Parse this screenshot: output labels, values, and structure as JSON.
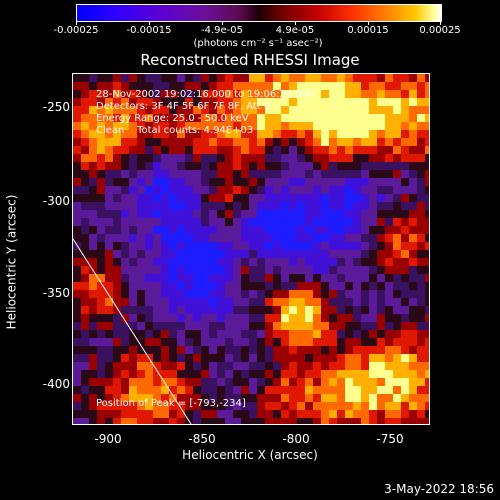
{
  "colorbar": {
    "ticks": [
      "-0.00025",
      "-0.00015",
      "-4.9e-05",
      "4.9e-05",
      "0.00015",
      "0.00025"
    ],
    "units": "(photons cm⁻² s⁻¹ asec⁻²)"
  },
  "title": "Reconstructed RHESSI Image",
  "info": {
    "line1": "28-Nov-2002 19:02:16.000 to 19:06:20.000",
    "line2": "Detectors: 3F 4F 5F 6F 7F 8F, Att 0",
    "line3": "Energy Range: 25.0 - 50.0 keV",
    "line4": "Clean    Total counts: 4.94E+03",
    "peak": "Position of Peak = [-793,-234]"
  },
  "axes": {
    "xlabel": "Heliocentric X (arcsec)",
    "ylabel": "Heliocentric Y (arcsec)",
    "xticks": [
      "-900",
      "-850",
      "-800",
      "-750"
    ],
    "yticks": [
      "-250",
      "-300",
      "-350",
      "-400"
    ]
  },
  "timestamp": "3-May-2022 18:56"
}
